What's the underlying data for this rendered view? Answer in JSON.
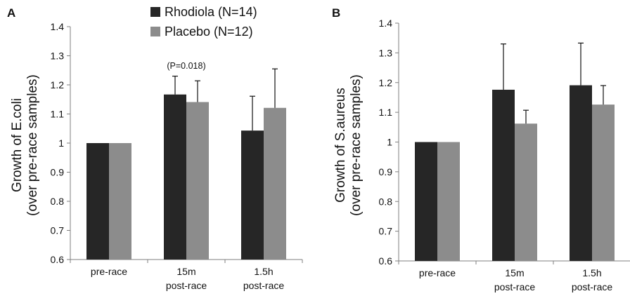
{
  "legend": {
    "items": [
      {
        "label": "Rhodiola (N=14)",
        "color": "#262626"
      },
      {
        "label": "Placebo (N=12)",
        "color": "#8c8c8c"
      }
    ]
  },
  "chart_data": [
    {
      "type": "bar",
      "panel_label": "A",
      "ylabel_lines": [
        "Growth of E.coli",
        "(over pre-race samples)"
      ],
      "ylim": [
        0.6,
        1.4
      ],
      "yticks": [
        "0.6",
        "0.7",
        "0.8",
        "0.9",
        "1",
        "1.1",
        "1.2",
        "1.3",
        "1.4"
      ],
      "categories": [
        [
          "pre-race"
        ],
        [
          "15m",
          "post-race"
        ],
        [
          "1.5h",
          "post-race"
        ]
      ],
      "series": [
        {
          "name": "Rhodiola (N=14)",
          "color": "#262626",
          "values": [
            1.0,
            1.167,
            1.043
          ],
          "errors": [
            0.0,
            0.063,
            0.118
          ]
        },
        {
          "name": "Placebo (N=12)",
          "color": "#8c8c8c",
          "values": [
            1.0,
            1.141,
            1.121
          ],
          "errors": [
            0.0,
            0.073,
            0.134
          ]
        }
      ],
      "annotations": [
        {
          "text": "(P=0.018)",
          "category_index": 1
        }
      ],
      "grid": false,
      "legend_position": "top-center"
    },
    {
      "type": "bar",
      "panel_label": "B",
      "ylabel_lines": [
        "Growth of S.aureus",
        "(over pre-race samples)"
      ],
      "ylim": [
        0.6,
        1.4
      ],
      "yticks": [
        "0.6",
        "0.7",
        "0.8",
        "0.9",
        "1",
        "1.1",
        "1.2",
        "1.3",
        "1.4"
      ],
      "categories": [
        [
          "pre-race"
        ],
        [
          "15m",
          "post-race"
        ],
        [
          "1.5h",
          "post-race"
        ]
      ],
      "series": [
        {
          "name": "Rhodiola (N=14)",
          "color": "#262626",
          "values": [
            1.0,
            1.176,
            1.191
          ],
          "errors": [
            0.0,
            0.154,
            0.142
          ]
        },
        {
          "name": "Placebo (N=12)",
          "color": "#8c8c8c",
          "values": [
            1.0,
            1.062,
            1.126
          ],
          "errors": [
            0.0,
            0.045,
            0.064
          ]
        }
      ],
      "annotations": [],
      "grid": false
    }
  ]
}
